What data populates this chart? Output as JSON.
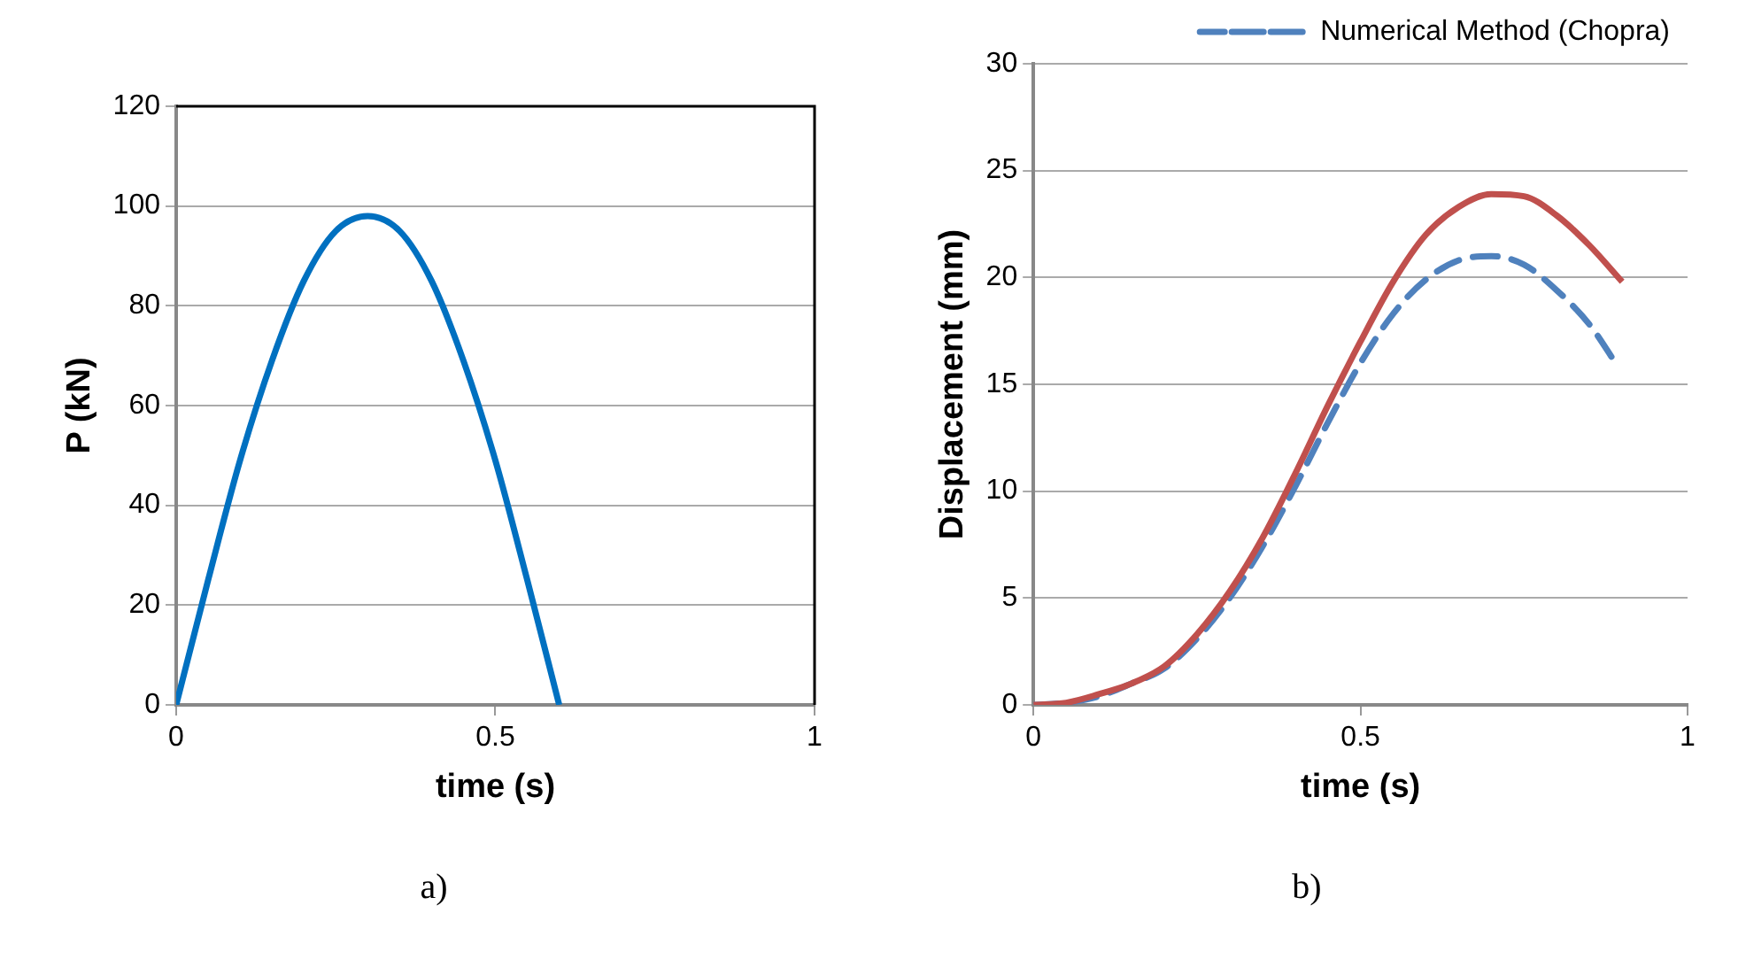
{
  "chart_data": [
    {
      "type": "line",
      "xlabel": "time (s)",
      "ylabel": "P (kN)",
      "x": [
        0,
        0.05,
        0.1,
        0.15,
        0.2,
        0.25,
        0.3,
        0.35,
        0.4,
        0.45,
        0.5,
        0.55,
        0.6
      ],
      "series": [
        {
          "color": "#0070c0",
          "values": [
            0,
            25,
            49,
            69,
            85,
            95,
            98,
            95,
            85,
            69,
            49,
            25,
            0
          ]
        }
      ],
      "xlim": [
        0,
        1
      ],
      "xticks": [
        0,
        0.5,
        1
      ],
      "ylim": [
        0,
        120
      ],
      "yticks": [
        0,
        20,
        40,
        60,
        80,
        100,
        120
      ],
      "grid": "y",
      "legend": false,
      "marker": "none",
      "line_style": "solid",
      "annotations": [
        "a)"
      ]
    },
    {
      "type": "line",
      "xlabel": "time (s)",
      "ylabel": "Displacement (mm)",
      "x": [
        0,
        0.05,
        0.1,
        0.15,
        0.2,
        0.25,
        0.3,
        0.35,
        0.4,
        0.45,
        0.5,
        0.55,
        0.6,
        0.65,
        0.7,
        0.75,
        0.8,
        0.85,
        0.9
      ],
      "series": [
        {
          "color": "#c0504d",
          "line_style": "solid",
          "values": [
            0,
            0.1,
            0.5,
            1,
            1.8,
            3.3,
            5.3,
            7.8,
            10.8,
            14,
            17,
            19.8,
            22,
            23.3,
            23.9,
            23.8,
            22.9,
            21.5,
            19.8
          ]
        },
        {
          "name": "Numerical Method (Chopra)",
          "color": "#4f81bd",
          "line_style": "dashed",
          "x": [
            0,
            0.05,
            0.1,
            0.15,
            0.2,
            0.25,
            0.3,
            0.35,
            0.4,
            0.45,
            0.5,
            0.55,
            0.6,
            0.65,
            0.7,
            0.75,
            0.8,
            0.85,
            0.89
          ],
          "values": [
            0,
            0.1,
            0.4,
            1,
            1.7,
            3.1,
            5,
            7.4,
            10.2,
            13.2,
            16,
            18.3,
            19.9,
            20.8,
            21,
            20.6,
            19.4,
            17.8,
            16
          ]
        }
      ],
      "xlim": [
        0,
        1
      ],
      "xticks": [
        0,
        0.5,
        1
      ],
      "ylim": [
        0,
        30
      ],
      "yticks": [
        0,
        5,
        10,
        15,
        20,
        25,
        30
      ],
      "grid": "y",
      "legend": "top",
      "marker": "none",
      "annotations": [
        "b)"
      ]
    }
  ]
}
